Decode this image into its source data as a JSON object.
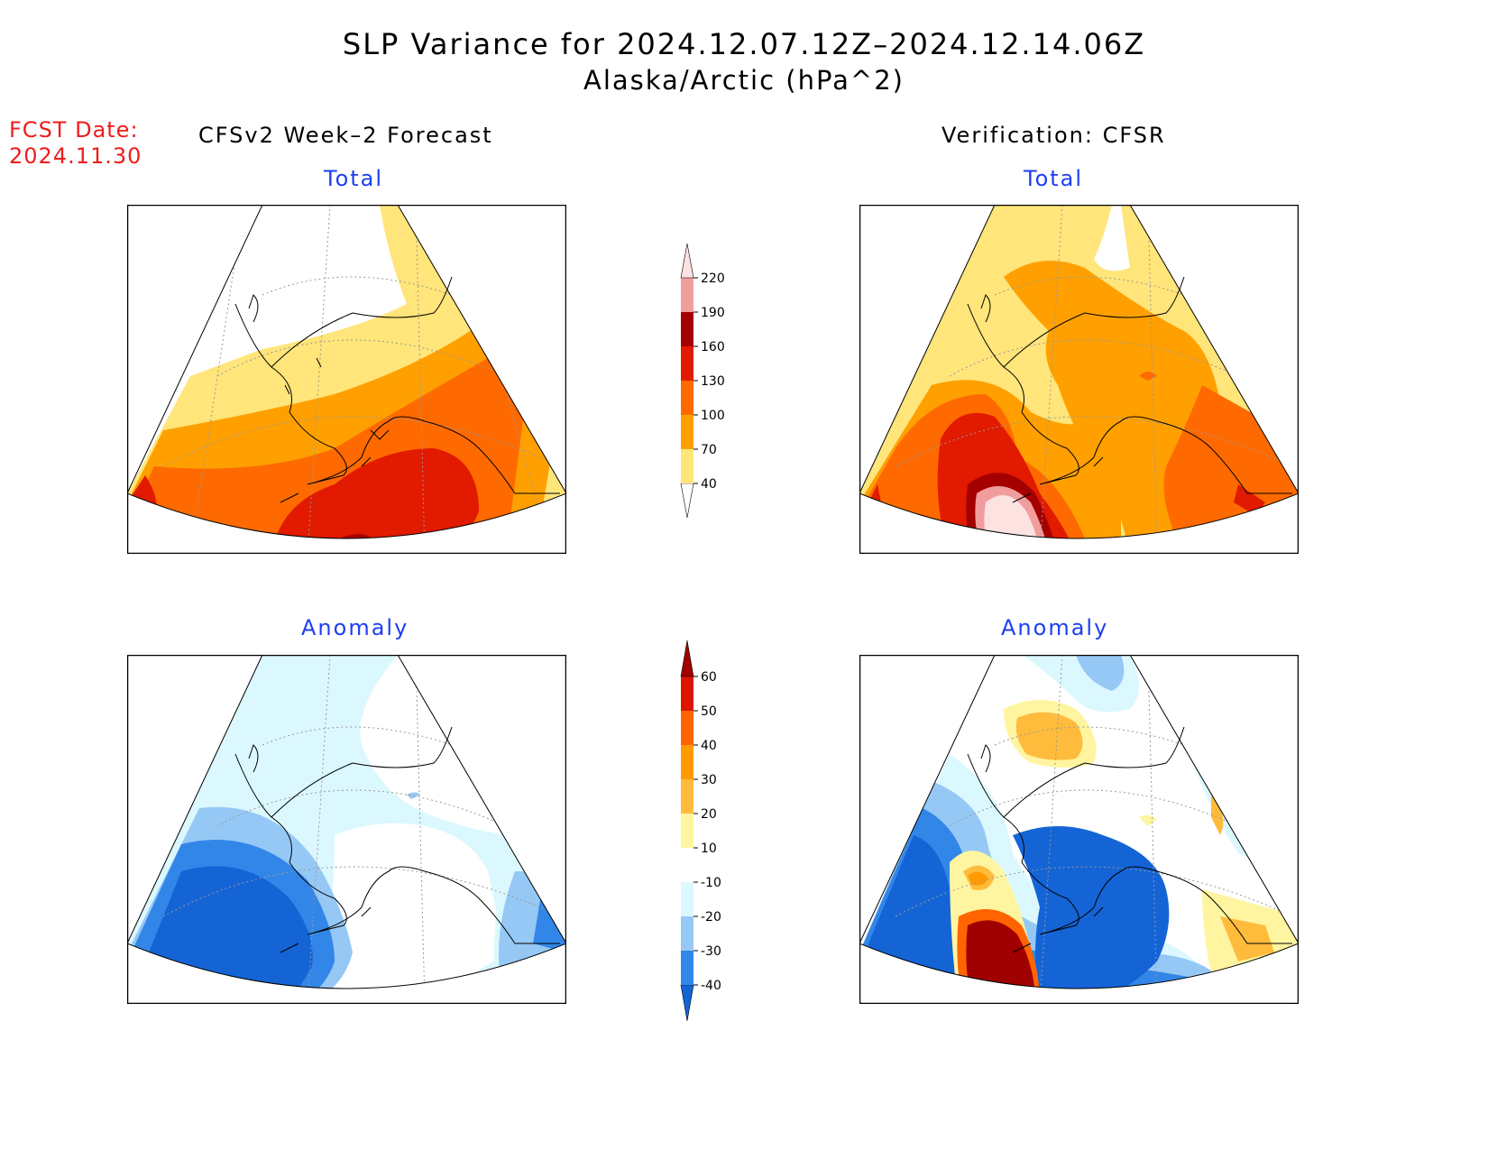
{
  "header": {
    "title": "SLP Variance for 2024.12.07.12Z–2024.12.14.06Z",
    "subtitle": "Alaska/Arctic (hPa^2)"
  },
  "fcst": {
    "label": "FCST Date:",
    "date": "2024.11.30"
  },
  "columns": {
    "left": "CFSv2 Week–2 Forecast",
    "right": "Verification: CFSR"
  },
  "panels": {
    "total_label": "Total",
    "anomaly_label": "Anomaly"
  },
  "colorbars": {
    "total": {
      "levels": [
        "40",
        "70",
        "100",
        "130",
        "160",
        "190",
        "220"
      ],
      "colors": [
        "#ffffff",
        "#ffe57a",
        "#ffa000",
        "#ff6a00",
        "#e11a00",
        "#a50000",
        "#f29d9d",
        "#fde2e2"
      ]
    },
    "anomaly": {
      "levels": [
        "-40",
        "-30",
        "-20",
        "-10",
        "10",
        "20",
        "30",
        "40",
        "50",
        "60"
      ],
      "colors": [
        "#1464d6",
        "#3286e8",
        "#96c8f5",
        "#dcf8ff",
        "#ffffff",
        "#fff5a0",
        "#ffbb3c",
        "#ff9a00",
        "#ff6400",
        "#dc1400",
        "#a00000"
      ]
    }
  }
}
